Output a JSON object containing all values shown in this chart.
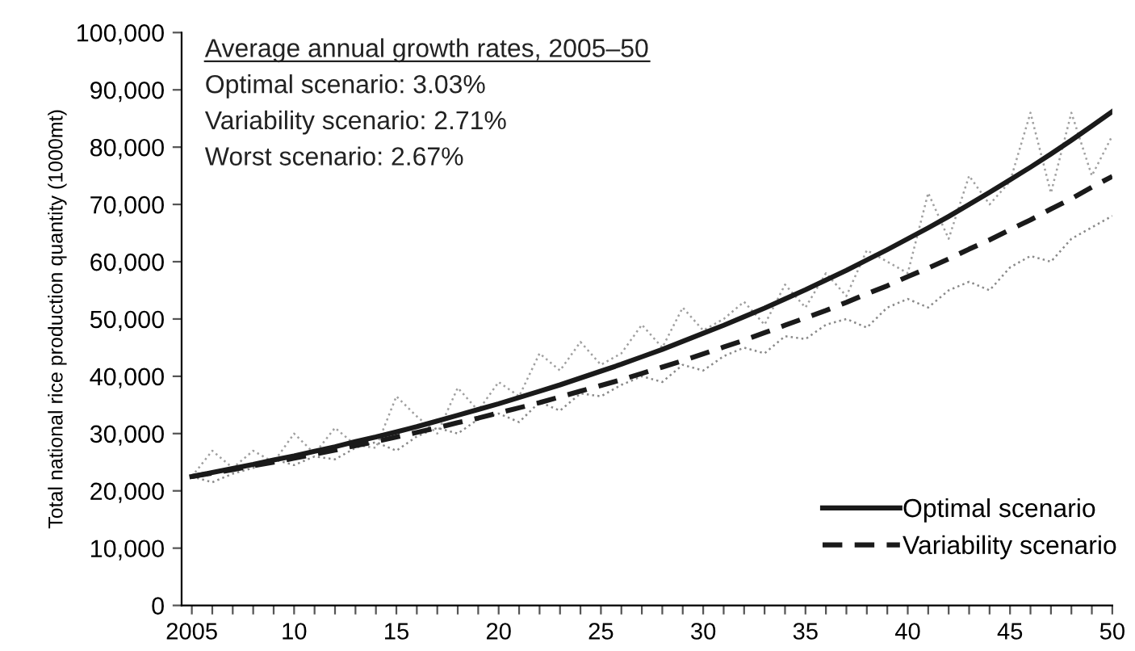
{
  "chart_data": {
    "type": "line",
    "ylabel": "Total national rice production quantity (1000mt)",
    "x": [
      2005,
      2006,
      2007,
      2008,
      2009,
      2010,
      2011,
      2012,
      2013,
      2014,
      2015,
      2016,
      2017,
      2018,
      2019,
      2020,
      2021,
      2022,
      2023,
      2024,
      2025,
      2026,
      2027,
      2028,
      2029,
      2030,
      2031,
      2032,
      2033,
      2034,
      2035,
      2036,
      2037,
      2038,
      2039,
      2040,
      2041,
      2042,
      2043,
      2044,
      2045,
      2046,
      2047,
      2048,
      2049,
      2050
    ],
    "series": [
      {
        "color": "#a0a0a0",
        "line_style": "dotted",
        "values": [
          22500,
          27000,
          24000,
          27000,
          25000,
          30000,
          26500,
          31000,
          28000,
          27500,
          36500,
          33000,
          30000,
          38000,
          34000,
          39000,
          36500,
          44000,
          41000,
          46000,
          42000,
          44000,
          49000,
          45000,
          52000,
          48000,
          50000,
          53000,
          49000,
          56000,
          52000,
          58000,
          54000,
          62000,
          60000,
          58000,
          72000,
          64000,
          75000,
          70000,
          74000,
          86000,
          72000,
          86000,
          75000,
          82000
        ]
      },
      {
        "color": "#8a8a8a",
        "line_style": "dotted",
        "values": [
          22500,
          21500,
          23000,
          24000,
          25500,
          24500,
          26000,
          25500,
          27500,
          28500,
          27000,
          29500,
          31000,
          30000,
          32500,
          33500,
          32000,
          35500,
          34000,
          37000,
          36500,
          38500,
          40000,
          39000,
          42000,
          41000,
          43500,
          45000,
          44000,
          47000,
          46500,
          49000,
          50000,
          48500,
          52000,
          53500,
          52000,
          55000,
          56500,
          55000,
          59000,
          61000,
          60000,
          64000,
          66000,
          68000
        ]
      },
      {
        "name": "Optimal scenario",
        "color": "#1a1a1a",
        "line_style": "solid",
        "values": [
          22500,
          23200,
          23900,
          24600,
          25400,
          26100,
          26900,
          27700,
          28600,
          29400,
          30300,
          31200,
          32200,
          33200,
          34200,
          35200,
          36300,
          37400,
          38500,
          39700,
          40900,
          42100,
          43400,
          44700,
          46100,
          47500,
          48900,
          50400,
          51900,
          53500,
          55100,
          56800,
          58500,
          60300,
          62100,
          64000,
          65900,
          67900,
          70000,
          72100,
          74300,
          76500,
          78800,
          81200,
          83700,
          86200
        ]
      },
      {
        "name": "Variability scenario",
        "color": "#1a1a1a",
        "line_style": "dashed",
        "values": [
          22500,
          23100,
          23700,
          24400,
          25000,
          25700,
          26400,
          27100,
          27900,
          28600,
          29400,
          30200,
          31000,
          31900,
          32700,
          33600,
          34500,
          35400,
          36400,
          37400,
          38400,
          39400,
          40500,
          41600,
          42700,
          43900,
          45100,
          46300,
          47600,
          48900,
          50200,
          51500,
          52900,
          54400,
          55800,
          57400,
          58900,
          60500,
          62200,
          63800,
          65600,
          67300,
          69200,
          71000,
          73000,
          74900
        ]
      }
    ],
    "xlim": [
      2004.5,
      2050
    ],
    "xticks": [
      {
        "value": 2005,
        "label": "2005"
      },
      {
        "value": 2006,
        "label": null
      },
      {
        "value": 2007,
        "label": null
      },
      {
        "value": 2008,
        "label": null
      },
      {
        "value": 2009,
        "label": null
      },
      {
        "value": 2010,
        "label": "10"
      },
      {
        "value": 2011,
        "label": null
      },
      {
        "value": 2012,
        "label": null
      },
      {
        "value": 2013,
        "label": null
      },
      {
        "value": 2014,
        "label": null
      },
      {
        "value": 2015,
        "label": "15"
      },
      {
        "value": 2016,
        "label": null
      },
      {
        "value": 2017,
        "label": null
      },
      {
        "value": 2018,
        "label": null
      },
      {
        "value": 2019,
        "label": null
      },
      {
        "value": 2020,
        "label": "20"
      },
      {
        "value": 2021,
        "label": null
      },
      {
        "value": 2022,
        "label": null
      },
      {
        "value": 2023,
        "label": null
      },
      {
        "value": 2024,
        "label": null
      },
      {
        "value": 2025,
        "label": "25"
      },
      {
        "value": 2026,
        "label": null
      },
      {
        "value": 2027,
        "label": null
      },
      {
        "value": 2028,
        "label": null
      },
      {
        "value": 2029,
        "label": null
      },
      {
        "value": 2030,
        "label": "30"
      },
      {
        "value": 2031,
        "label": null
      },
      {
        "value": 2032,
        "label": null
      },
      {
        "value": 2033,
        "label": null
      },
      {
        "value": 2034,
        "label": null
      },
      {
        "value": 2035,
        "label": "35"
      },
      {
        "value": 2036,
        "label": null
      },
      {
        "value": 2037,
        "label": null
      },
      {
        "value": 2038,
        "label": null
      },
      {
        "value": 2039,
        "label": null
      },
      {
        "value": 2040,
        "label": "40"
      },
      {
        "value": 2041,
        "label": null
      },
      {
        "value": 2042,
        "label": null
      },
      {
        "value": 2043,
        "label": null
      },
      {
        "value": 2044,
        "label": null
      },
      {
        "value": 2045,
        "label": "45"
      },
      {
        "value": 2046,
        "label": null
      },
      {
        "value": 2047,
        "label": null
      },
      {
        "value": 2048,
        "label": null
      },
      {
        "value": 2049,
        "label": null
      },
      {
        "value": 2050,
        "label": "50"
      }
    ],
    "ylim": [
      0,
      100000
    ],
    "yticks": [
      0,
      {
        "value": 10000,
        "label": "10,000"
      },
      {
        "value": 20000,
        "label": "20,000"
      },
      {
        "value": 30000,
        "label": "30,000"
      },
      {
        "value": 40000,
        "label": "40,000"
      },
      {
        "value": 50000,
        "label": "50,000"
      },
      {
        "value": 60000,
        "label": "60,000"
      },
      {
        "value": 70000,
        "label": "70,000"
      },
      {
        "value": 80000,
        "label": "80,000"
      },
      {
        "value": 90000,
        "label": "90,000"
      },
      {
        "value": 100000,
        "label": "100,000"
      }
    ],
    "annotations": [
      "Average annual growth rates, 2005–50",
      "Optimal scenario: 3.03%",
      "Variability scenario: 2.71%",
      "Worst scenario: 2.67%"
    ],
    "legend": "bottom right",
    "grid": false,
    "marker": "none"
  }
}
